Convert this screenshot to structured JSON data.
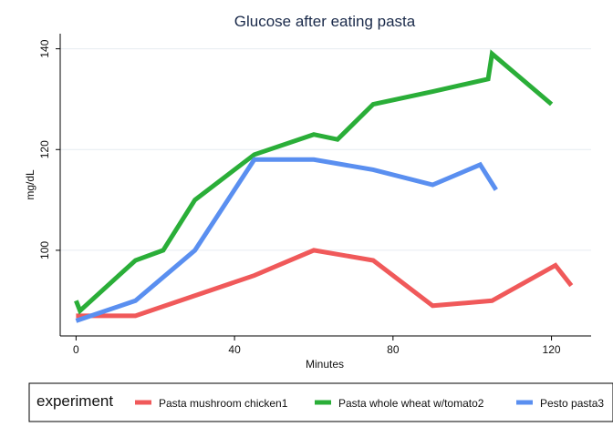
{
  "chart_data": {
    "type": "line",
    "title": "Glucose after eating pasta",
    "xlabel": "Minutes",
    "ylabel": "mg/dL",
    "xlim": [
      -4,
      130
    ],
    "ylim": [
      83,
      143
    ],
    "x_ticks": [
      0,
      40,
      80,
      120
    ],
    "y_ticks": [
      100,
      120,
      140
    ],
    "grid": "horizontal",
    "legend": {
      "title": "experiment",
      "placement": "bottom"
    },
    "series": [
      {
        "name": "Pasta mushroom chicken1",
        "color": "#f0595a",
        "points": [
          [
            0,
            87
          ],
          [
            15,
            87
          ],
          [
            45,
            95
          ],
          [
            60,
            100
          ],
          [
            75,
            98
          ],
          [
            90,
            89
          ],
          [
            105,
            90
          ],
          [
            121,
            97
          ],
          [
            125,
            93
          ]
        ]
      },
      {
        "name": "Pasta whole wheat w/tomato2",
        "color": "#2aae38",
        "points": [
          [
            0,
            90
          ],
          [
            1,
            88
          ],
          [
            15,
            98
          ],
          [
            22,
            100
          ],
          [
            30,
            110
          ],
          [
            45,
            119
          ],
          [
            60,
            123
          ],
          [
            66,
            122
          ],
          [
            75,
            129
          ],
          [
            90,
            131.5
          ],
          [
            104,
            134
          ],
          [
            105,
            139
          ],
          [
            120,
            129
          ]
        ]
      },
      {
        "name": "Pesto pasta3",
        "color": "#5a8ff0",
        "points": [
          [
            0,
            86
          ],
          [
            15,
            90
          ],
          [
            30,
            100
          ],
          [
            45,
            118
          ],
          [
            60,
            118
          ],
          [
            75,
            116
          ],
          [
            90,
            113
          ],
          [
            102,
            117
          ],
          [
            106,
            112
          ]
        ]
      }
    ]
  }
}
